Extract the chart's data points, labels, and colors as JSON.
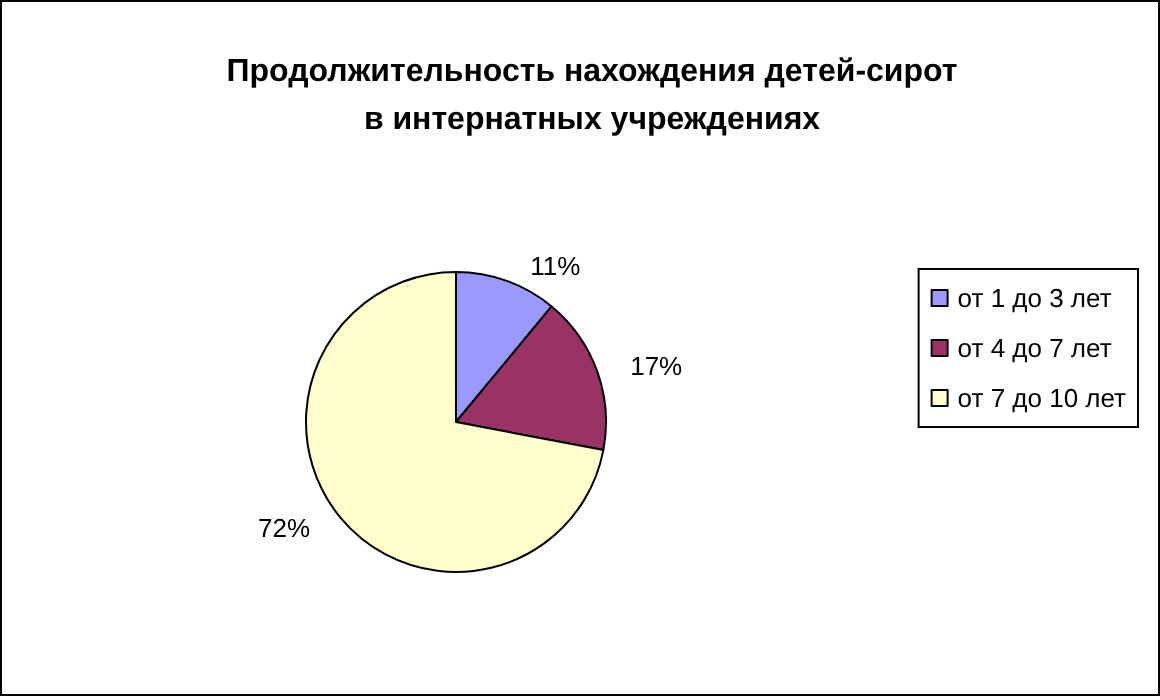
{
  "chart_data": {
    "type": "pie",
    "title": "Продолжительность нахождения детей-сирот\nв интернатных учреждениях",
    "categories": [
      "от 1 до 3 лет",
      "от 4 до 7 лет",
      "от 7 до 10 лет"
    ],
    "values": [
      11,
      17,
      72
    ],
    "colors": [
      "#9999ff",
      "#993366",
      "#ffffcc"
    ],
    "value_labels": [
      "11%",
      "17%",
      "72%"
    ],
    "legend": "right"
  }
}
